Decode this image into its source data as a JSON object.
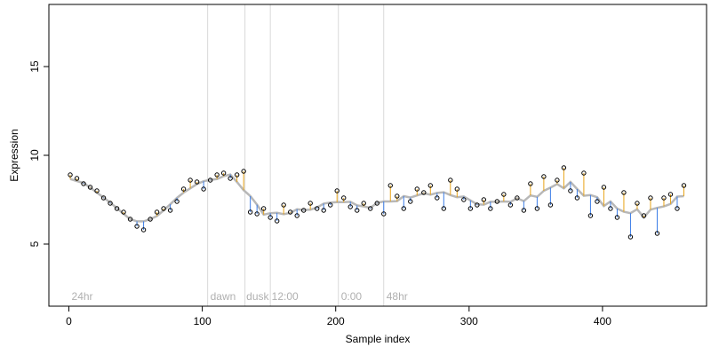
{
  "chart_data": {
    "type": "scatter",
    "xlabel": "Sample index",
    "ylabel": "Expression",
    "xlim": [
      -15,
      478
    ],
    "ylim": [
      1.5,
      18.5
    ],
    "x_ticks": [
      0,
      100,
      200,
      300,
      400
    ],
    "y_ticks": [
      5,
      10,
      15
    ],
    "phase_boundaries": [
      104,
      132,
      151,
      202,
      236
    ],
    "phase_labels": [
      {
        "x": 2,
        "text": "24hr"
      },
      {
        "x": 106,
        "text": "dawn"
      },
      {
        "x": 133,
        "text": "dusk"
      },
      {
        "x": 152,
        "text": "12:00"
      },
      {
        "x": 204,
        "text": "0:00"
      },
      {
        "x": 238,
        "text": "48hr"
      }
    ],
    "colors": {
      "above": "#e8a317",
      "below": "#3b7de8",
      "fit": "#b8b8b8",
      "points": "#000000",
      "boundary": "#d9d9d9"
    },
    "series": [
      {
        "x": [
          1,
          6,
          11,
          16,
          21,
          26,
          31,
          36,
          41,
          46,
          51,
          56,
          61,
          66,
          71,
          76,
          81,
          86,
          91,
          96,
          101,
          106,
          111,
          116,
          121,
          126,
          131,
          136,
          141,
          146,
          151,
          156,
          161,
          166,
          171,
          176,
          181,
          186,
          191,
          196,
          201,
          206,
          211,
          216,
          221,
          226,
          231,
          236,
          241,
          246,
          251,
          256,
          261,
          266,
          271,
          276,
          281,
          286,
          291,
          296,
          301,
          306,
          311,
          316,
          321,
          326,
          331,
          336,
          341,
          346,
          351,
          356,
          361,
          366,
          371,
          376,
          381,
          386,
          391,
          396,
          401,
          406,
          411,
          416,
          421,
          426,
          431,
          436,
          441,
          446,
          451,
          456,
          461
        ],
        "y": [
          8.9,
          8.7,
          8.4,
          8.2,
          8.0,
          7.6,
          7.3,
          7.0,
          6.8,
          6.4,
          6.0,
          5.8,
          6.4,
          6.8,
          7.0,
          6.9,
          7.4,
          8.1,
          8.6,
          8.5,
          8.1,
          8.6,
          8.9,
          9.0,
          8.7,
          8.9,
          9.1,
          6.8,
          6.7,
          7.0,
          6.5,
          6.3,
          7.2,
          6.8,
          6.6,
          6.9,
          7.3,
          7.0,
          6.9,
          7.2,
          8.0,
          7.6,
          7.1,
          6.9,
          7.3,
          7.0,
          7.3,
          6.7,
          8.3,
          7.7,
          7.0,
          7.4,
          8.1,
          7.9,
          8.3,
          7.6,
          7.0,
          8.6,
          8.1,
          7.5,
          7.0,
          7.2,
          7.5,
          7.0,
          7.4,
          7.8,
          7.2,
          7.6,
          6.9,
          8.4,
          7.0,
          8.8,
          7.2,
          8.6,
          9.3,
          8.0,
          7.6,
          9.0,
          6.6,
          7.4,
          8.2,
          7.0,
          6.5,
          7.9,
          5.4,
          7.3,
          6.6,
          7.6,
          5.6,
          7.6,
          7.8,
          7.0,
          8.3
        ]
      }
    ]
  }
}
